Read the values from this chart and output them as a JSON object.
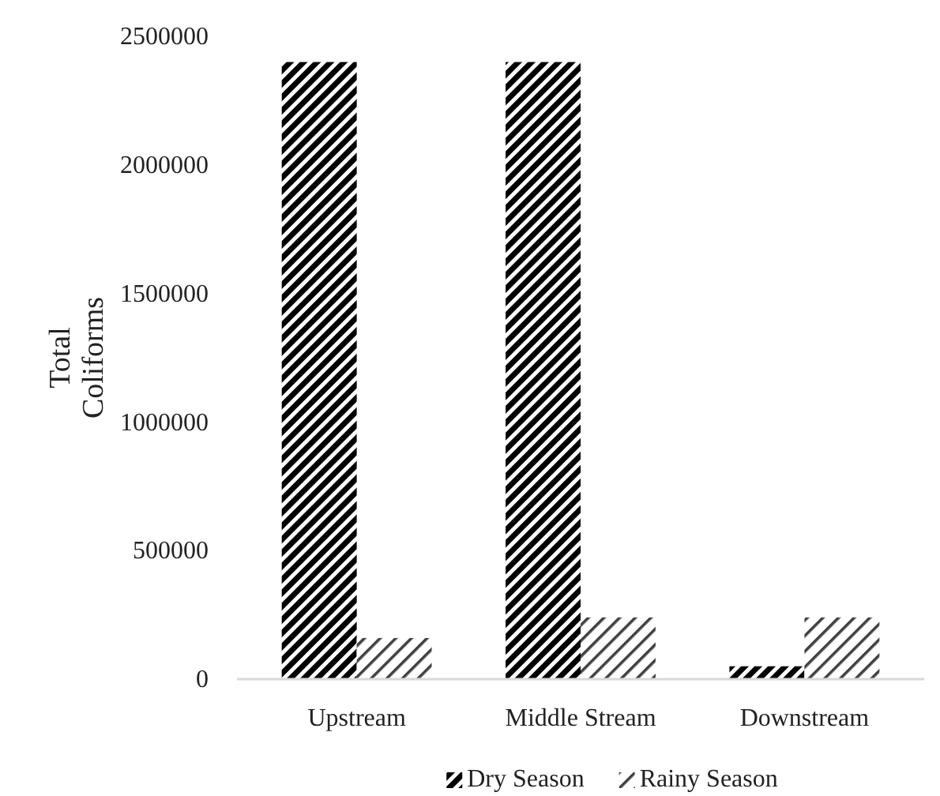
{
  "chart_data": {
    "type": "bar",
    "ylabel": "Total Coliforms",
    "categories": [
      "Upstream",
      "Middle Stream",
      "Downstream"
    ],
    "series": [
      {
        "name": "Dry Season",
        "color": "#000000",
        "values": [
          2400000,
          2400000,
          50000
        ]
      },
      {
        "name": "Rainy Season",
        "color": "#404040",
        "values": [
          160000,
          240000,
          240000
        ]
      }
    ],
    "ylim": [
      0,
      2500000
    ],
    "yticks": [
      0,
      500000,
      1000000,
      1500000,
      2000000,
      2500000
    ],
    "grid": false,
    "legend": "bottom"
  }
}
